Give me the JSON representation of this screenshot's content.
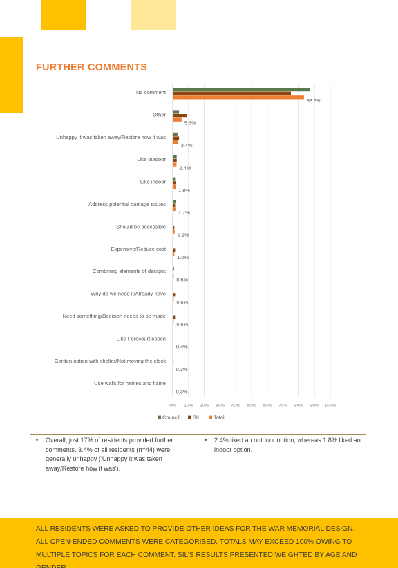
{
  "colors": {
    "accent": "#ffc000",
    "accent_light": "#ffe699",
    "title": "#ed7d31",
    "council": "#5a7a4a",
    "sil": "#8b4513",
    "total": "#ed7d31"
  },
  "section": {
    "title": "FURTHER COMMENTS"
  },
  "chart_data": {
    "type": "bar",
    "orientation": "horizontal",
    "categories": [
      "No comment",
      "Other",
      "Unhappy it was taken away/Restore how it was",
      "Like outdoor",
      "Like indoor",
      "Address potential damage issues",
      "Should be accessible",
      "Expensive/Reduce cost",
      "Combining elements of designs",
      "Why do we need it/Already have",
      "Need something/Decision needs to be made",
      "Like Forecourt option",
      "Garden option with shelter/Not moving the clock",
      "Use walls for names and flame"
    ],
    "series": [
      {
        "name": "Council",
        "values": [
          87,
          4,
          3,
          2.5,
          1.5,
          2,
          0.5,
          0.3,
          0.8,
          0.3,
          0.3,
          0.4,
          0.3,
          0.3
        ]
      },
      {
        "name": "SIL",
        "values": [
          75,
          9,
          4,
          2.5,
          2,
          1.5,
          1,
          1.5,
          0.3,
          1.5,
          1.5,
          0.3,
          0.5,
          0.3
        ]
      },
      {
        "name": "Total",
        "values": [
          83.3,
          5.6,
          3.4,
          2.4,
          1.8,
          1.7,
          1.2,
          1.0,
          0.6,
          0.6,
          0.6,
          0.4,
          0.3,
          0.3
        ]
      }
    ],
    "data_labels": [
      "83.3%",
      "5.6%",
      "3.4%",
      "2.4%",
      "1.8%",
      "1.7%",
      "1.2%",
      "1.0%",
      "0.6%",
      "0.6%",
      "0.6%",
      "0.4%",
      "0.3%",
      "0.3%"
    ],
    "xlim": [
      0,
      100
    ],
    "xticks": [
      "0%",
      "10%",
      "20%",
      "30%",
      "40%",
      "50%",
      "60%",
      "70%",
      "80%",
      "90%",
      "100%"
    ],
    "grid": true,
    "legend": "bottom-center"
  },
  "bullets_left": [
    "Overall, just 17% of residents provided further comments. 3.4% of all residents (n=44) were generally unhappy (‘Unhappy it was taken away/Restore how it was’)."
  ],
  "bullets_right": [
    "2.4% liked an outdoor option, whereas 1.8% liked an indoor option."
  ],
  "footer": {
    "note": "ALL RESIDENTS WERE ASKED TO PROVIDE OTHER IDEAS FOR THE WAR MEMORIAL DESIGN. ALL OPEN-ENDED COMMENTS WERE CATEGORISED. TOTALS MAY EXCEED 100% OWING TO MULTIPLE TOPICS FOR EACH COMMENT. SIL’S RESULTS PRESENTED WEIGHTED BY AGE AND GENDER."
  }
}
